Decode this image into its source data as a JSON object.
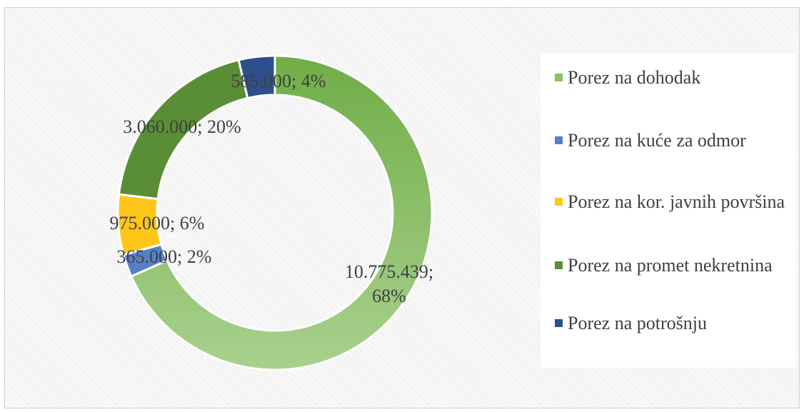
{
  "chart_data": {
    "type": "donut",
    "categories": [
      "Porez na dohodak",
      "Porez na kuće za odmor",
      "Porez na kor. javnih površina",
      "Porez na promet nekretnina",
      "Porez na potrošnju"
    ],
    "values": [
      10775439,
      365000,
      975000,
      3060000,
      585000
    ],
    "value_labels": [
      "10.775.439; 68%",
      "365.000; 2%",
      "975.000; 6%",
      "3.060.000; 20%",
      "585.000; 4%"
    ],
    "colors": [
      "#8cc063",
      "#5480c8",
      "#ffc61a",
      "#5a8e36",
      "#2f4e8c"
    ],
    "legend": "right"
  }
}
